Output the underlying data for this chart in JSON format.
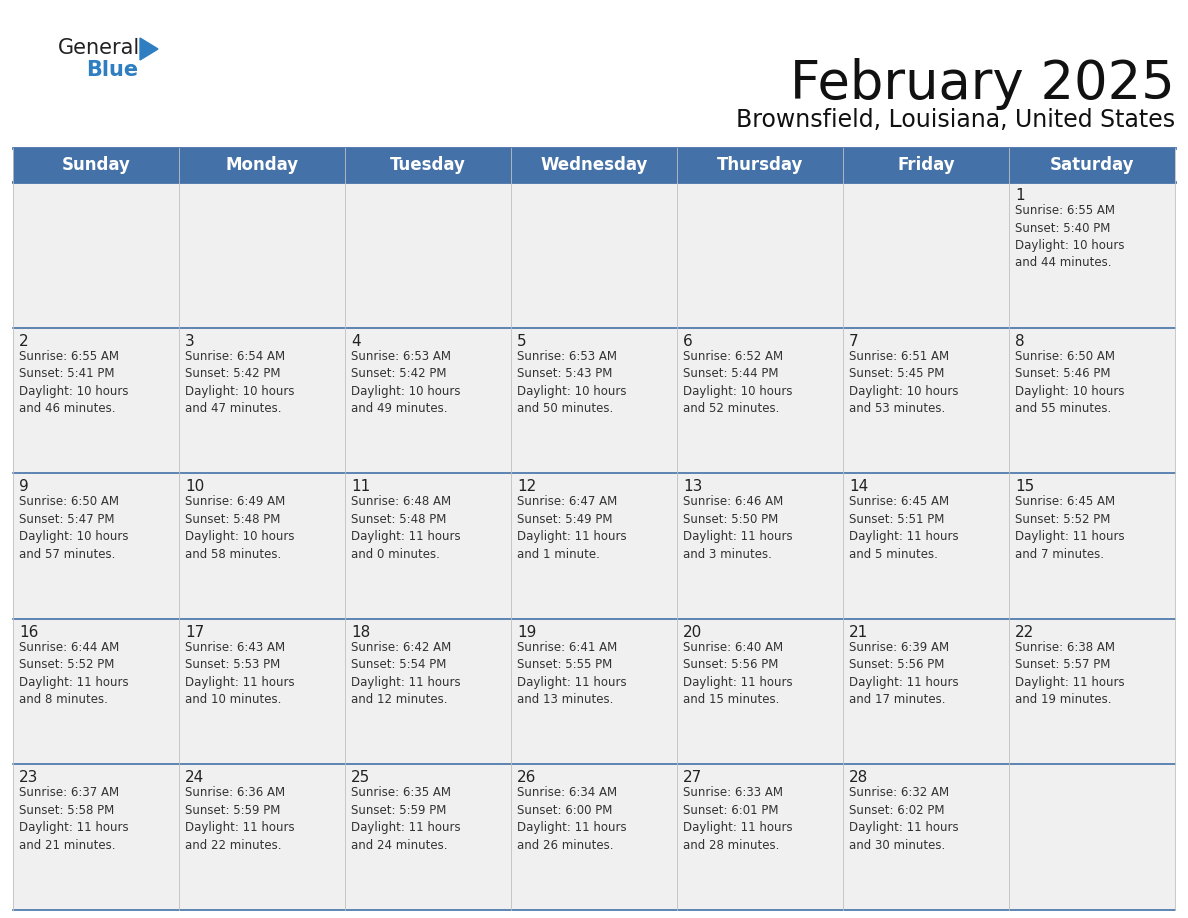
{
  "title": "February 2025",
  "subtitle": "Brownsfield, Louisiana, United States",
  "header_bg": "#4472a8",
  "header_text_color": "#ffffff",
  "cell_bg": "#f0f0f0",
  "day_headers": [
    "Sunday",
    "Monday",
    "Tuesday",
    "Wednesday",
    "Thursday",
    "Friday",
    "Saturday"
  ],
  "title_fontsize": 38,
  "subtitle_fontsize": 17,
  "header_fontsize": 12,
  "day_num_fontsize": 11,
  "info_fontsize": 8.5,
  "logo_fontsize_general": 15,
  "logo_fontsize_blue": 15,
  "logo_color1": "#222222",
  "logo_color2": "#2e7ec1",
  "logo_triangle_color": "#2e7ec1",
  "grid_line_color": "#4472a8",
  "calendar_data": [
    [
      {
        "day": null,
        "info": ""
      },
      {
        "day": null,
        "info": ""
      },
      {
        "day": null,
        "info": ""
      },
      {
        "day": null,
        "info": ""
      },
      {
        "day": null,
        "info": ""
      },
      {
        "day": null,
        "info": ""
      },
      {
        "day": 1,
        "info": "Sunrise: 6:55 AM\nSunset: 5:40 PM\nDaylight: 10 hours\nand 44 minutes."
      }
    ],
    [
      {
        "day": 2,
        "info": "Sunrise: 6:55 AM\nSunset: 5:41 PM\nDaylight: 10 hours\nand 46 minutes."
      },
      {
        "day": 3,
        "info": "Sunrise: 6:54 AM\nSunset: 5:42 PM\nDaylight: 10 hours\nand 47 minutes."
      },
      {
        "day": 4,
        "info": "Sunrise: 6:53 AM\nSunset: 5:42 PM\nDaylight: 10 hours\nand 49 minutes."
      },
      {
        "day": 5,
        "info": "Sunrise: 6:53 AM\nSunset: 5:43 PM\nDaylight: 10 hours\nand 50 minutes."
      },
      {
        "day": 6,
        "info": "Sunrise: 6:52 AM\nSunset: 5:44 PM\nDaylight: 10 hours\nand 52 minutes."
      },
      {
        "day": 7,
        "info": "Sunrise: 6:51 AM\nSunset: 5:45 PM\nDaylight: 10 hours\nand 53 minutes."
      },
      {
        "day": 8,
        "info": "Sunrise: 6:50 AM\nSunset: 5:46 PM\nDaylight: 10 hours\nand 55 minutes."
      }
    ],
    [
      {
        "day": 9,
        "info": "Sunrise: 6:50 AM\nSunset: 5:47 PM\nDaylight: 10 hours\nand 57 minutes."
      },
      {
        "day": 10,
        "info": "Sunrise: 6:49 AM\nSunset: 5:48 PM\nDaylight: 10 hours\nand 58 minutes."
      },
      {
        "day": 11,
        "info": "Sunrise: 6:48 AM\nSunset: 5:48 PM\nDaylight: 11 hours\nand 0 minutes."
      },
      {
        "day": 12,
        "info": "Sunrise: 6:47 AM\nSunset: 5:49 PM\nDaylight: 11 hours\nand 1 minute."
      },
      {
        "day": 13,
        "info": "Sunrise: 6:46 AM\nSunset: 5:50 PM\nDaylight: 11 hours\nand 3 minutes."
      },
      {
        "day": 14,
        "info": "Sunrise: 6:45 AM\nSunset: 5:51 PM\nDaylight: 11 hours\nand 5 minutes."
      },
      {
        "day": 15,
        "info": "Sunrise: 6:45 AM\nSunset: 5:52 PM\nDaylight: 11 hours\nand 7 minutes."
      }
    ],
    [
      {
        "day": 16,
        "info": "Sunrise: 6:44 AM\nSunset: 5:52 PM\nDaylight: 11 hours\nand 8 minutes."
      },
      {
        "day": 17,
        "info": "Sunrise: 6:43 AM\nSunset: 5:53 PM\nDaylight: 11 hours\nand 10 minutes."
      },
      {
        "day": 18,
        "info": "Sunrise: 6:42 AM\nSunset: 5:54 PM\nDaylight: 11 hours\nand 12 minutes."
      },
      {
        "day": 19,
        "info": "Sunrise: 6:41 AM\nSunset: 5:55 PM\nDaylight: 11 hours\nand 13 minutes."
      },
      {
        "day": 20,
        "info": "Sunrise: 6:40 AM\nSunset: 5:56 PM\nDaylight: 11 hours\nand 15 minutes."
      },
      {
        "day": 21,
        "info": "Sunrise: 6:39 AM\nSunset: 5:56 PM\nDaylight: 11 hours\nand 17 minutes."
      },
      {
        "day": 22,
        "info": "Sunrise: 6:38 AM\nSunset: 5:57 PM\nDaylight: 11 hours\nand 19 minutes."
      }
    ],
    [
      {
        "day": 23,
        "info": "Sunrise: 6:37 AM\nSunset: 5:58 PM\nDaylight: 11 hours\nand 21 minutes."
      },
      {
        "day": 24,
        "info": "Sunrise: 6:36 AM\nSunset: 5:59 PM\nDaylight: 11 hours\nand 22 minutes."
      },
      {
        "day": 25,
        "info": "Sunrise: 6:35 AM\nSunset: 5:59 PM\nDaylight: 11 hours\nand 24 minutes."
      },
      {
        "day": 26,
        "info": "Sunrise: 6:34 AM\nSunset: 6:00 PM\nDaylight: 11 hours\nand 26 minutes."
      },
      {
        "day": 27,
        "info": "Sunrise: 6:33 AM\nSunset: 6:01 PM\nDaylight: 11 hours\nand 28 minutes."
      },
      {
        "day": 28,
        "info": "Sunrise: 6:32 AM\nSunset: 6:02 PM\nDaylight: 11 hours\nand 30 minutes."
      },
      {
        "day": null,
        "info": ""
      }
    ]
  ]
}
